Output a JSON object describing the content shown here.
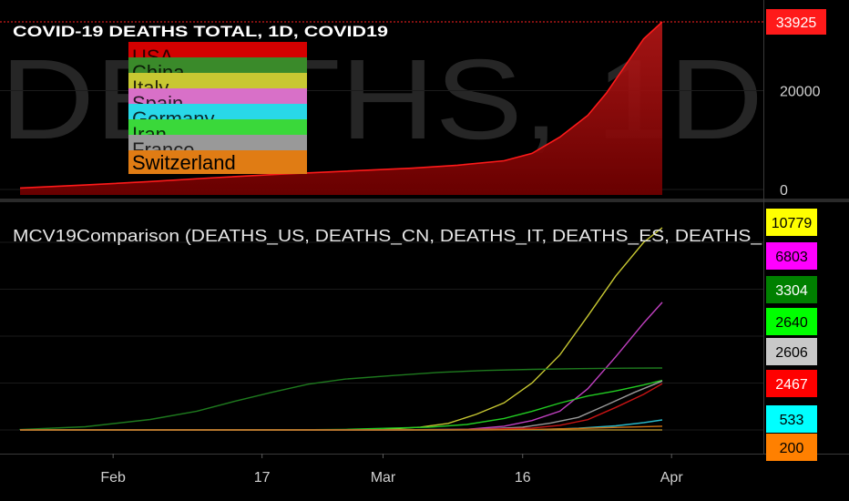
{
  "watermark": "DEATHS, 1D",
  "chart_data": [
    {
      "type": "area",
      "title": "COVID-19 DEATHS TOTAL, 1D, COVID19",
      "x_start": "2020-01-22",
      "x": [
        "2020-01-22",
        "2020-01-29",
        "2020-02-05",
        "2020-02-12",
        "2020-02-19",
        "2020-02-26",
        "2020-03-04",
        "2020-03-09",
        "2020-03-14",
        "2020-03-17",
        "2020-03-20",
        "2020-03-23",
        "2020-03-25",
        "2020-03-27",
        "2020-03-29",
        "2020-03-31"
      ],
      "values": [
        300,
        900,
        1600,
        2400,
        3100,
        3700,
        4300,
        4900,
        5800,
        7300,
        10600,
        15000,
        19500,
        25000,
        30500,
        33925
      ],
      "ylim": [
        -3000,
        35500
      ],
      "y_ticks": [
        0,
        20000
      ],
      "last_value_label": "33925",
      "color": "#ff1a1a",
      "legend": {
        "placement": "top-left",
        "entries": [
          {
            "name": "USA",
            "color": "#d40000"
          },
          {
            "name": "China",
            "color": "#3a8a2a"
          },
          {
            "name": "Italy",
            "color": "#c8c832"
          },
          {
            "name": "Spain",
            "color": "#d870c8"
          },
          {
            "name": "Germany",
            "color": "#29d8e8"
          },
          {
            "name": "Iran",
            "color": "#3ad83a"
          },
          {
            "name": "France",
            "color": "#999999"
          },
          {
            "name": "Switzerland",
            "color": "#e07c14"
          }
        ]
      }
    },
    {
      "type": "line",
      "title": "MCV19Comparison (DEATHS_US, DEATHS_CN, DEATHS_IT, DEATHS_ES, DEATHS_",
      "ylim": [
        -400,
        12000
      ],
      "series": [
        {
          "name": "Italy",
          "color": "#c8c832",
          "last_label": "10779",
          "label_bg": "#ffff00",
          "label_fg": "#000000",
          "points": [
            [
              "2020-02-21",
              0
            ],
            [
              "2020-03-01",
              30
            ],
            [
              "2020-03-05",
              150
            ],
            [
              "2020-03-08",
              350
            ],
            [
              "2020-03-11",
              830
            ],
            [
              "2020-03-14",
              1440
            ],
            [
              "2020-03-17",
              2500
            ],
            [
              "2020-03-20",
              4000
            ],
            [
              "2020-03-23",
              6080
            ],
            [
              "2020-03-26",
              8200
            ],
            [
              "2020-03-29",
              10000
            ],
            [
              "2020-03-31",
              10779
            ]
          ]
        },
        {
          "name": "Spain",
          "color": "#c040c0",
          "last_label": "6803",
          "label_bg": "#ff00ff",
          "label_fg": "#000000",
          "points": [
            [
              "2020-03-03",
              0
            ],
            [
              "2020-03-10",
              35
            ],
            [
              "2020-03-14",
              200
            ],
            [
              "2020-03-17",
              500
            ],
            [
              "2020-03-20",
              1000
            ],
            [
              "2020-03-23",
              2200
            ],
            [
              "2020-03-26",
              3900
            ],
            [
              "2020-03-29",
              5700
            ],
            [
              "2020-03-31",
              6803
            ]
          ]
        },
        {
          "name": "China",
          "color": "#1e7a1e",
          "last_label": "3304",
          "label_bg": "#008000",
          "label_fg": "#ffffff",
          "points": [
            [
              "2020-01-22",
              17
            ],
            [
              "2020-01-29",
              170
            ],
            [
              "2020-02-05",
              560
            ],
            [
              "2020-02-10",
              1000
            ],
            [
              "2020-02-14",
              1520
            ],
            [
              "2020-02-18",
              2000
            ],
            [
              "2020-02-22",
              2440
            ],
            [
              "2020-02-26",
              2715
            ],
            [
              "2020-03-02",
              2900
            ],
            [
              "2020-03-07",
              3070
            ],
            [
              "2020-03-12",
              3170
            ],
            [
              "2020-03-17",
              3230
            ],
            [
              "2020-03-22",
              3270
            ],
            [
              "2020-03-27",
              3290
            ],
            [
              "2020-03-31",
              3304
            ]
          ]
        },
        {
          "name": "Iran",
          "color": "#22cc22",
          "last_label": "2640",
          "label_bg": "#00ff00",
          "label_fg": "#000000",
          "points": [
            [
              "2020-02-19",
              0
            ],
            [
              "2020-02-26",
              30
            ],
            [
              "2020-03-02",
              100
            ],
            [
              "2020-03-06",
              150
            ],
            [
              "2020-03-10",
              290
            ],
            [
              "2020-03-14",
              610
            ],
            [
              "2020-03-17",
              990
            ],
            [
              "2020-03-20",
              1430
            ],
            [
              "2020-03-23",
              1810
            ],
            [
              "2020-03-26",
              2080
            ],
            [
              "2020-03-29",
              2400
            ],
            [
              "2020-03-31",
              2640
            ]
          ]
        },
        {
          "name": "France",
          "color": "#9a9a9a",
          "last_label": "2606",
          "label_bg": "#c8c8c8",
          "label_fg": "#000000",
          "points": [
            [
              "2020-02-29",
              0
            ],
            [
              "2020-03-09",
              25
            ],
            [
              "2020-03-13",
              80
            ],
            [
              "2020-03-16",
              150
            ],
            [
              "2020-03-19",
              370
            ],
            [
              "2020-03-22",
              670
            ],
            [
              "2020-03-25",
              1330
            ],
            [
              "2020-03-28",
              2000
            ],
            [
              "2020-03-31",
              2606
            ]
          ]
        },
        {
          "name": "USA",
          "color": "#c81414",
          "last_label": "2467",
          "label_bg": "#ff0000",
          "label_fg": "#ffffff",
          "points": [
            [
              "2020-02-29",
              0
            ],
            [
              "2020-03-08",
              20
            ],
            [
              "2020-03-13",
              50
            ],
            [
              "2020-03-17",
              100
            ],
            [
              "2020-03-20",
              250
            ],
            [
              "2020-03-23",
              550
            ],
            [
              "2020-03-26",
              1200
            ],
            [
              "2020-03-29",
              1900
            ],
            [
              "2020-03-31",
              2467
            ]
          ]
        },
        {
          "name": "Germany",
          "color": "#29b8c8",
          "last_label": "533",
          "label_bg": "#00ffff",
          "label_fg": "#000000",
          "points": [
            [
              "2020-03-08",
              0
            ],
            [
              "2020-03-14",
              9
            ],
            [
              "2020-03-18",
              20
            ],
            [
              "2020-03-22",
              90
            ],
            [
              "2020-03-26",
              220
            ],
            [
              "2020-03-29",
              390
            ],
            [
              "2020-03-31",
              533
            ]
          ]
        },
        {
          "name": "Switzerland",
          "color": "#d07010",
          "last_label": "200",
          "label_bg": "#ff8000",
          "label_fg": "#000000",
          "points": [
            [
              "2020-03-04",
              0
            ],
            [
              "2020-03-12",
              7
            ],
            [
              "2020-03-17",
              30
            ],
            [
              "2020-03-22",
              80
            ],
            [
              "2020-03-27",
              150
            ],
            [
              "2020-03-31",
              200
            ]
          ]
        }
      ]
    }
  ],
  "x_axis": {
    "ticks": [
      {
        "date": "2020-02-01",
        "label": "Feb"
      },
      {
        "date": "2020-02-17",
        "label": "17"
      },
      {
        "date": "2020-03-01",
        "label": "Mar"
      },
      {
        "date": "2020-03-16",
        "label": "16"
      },
      {
        "date": "2020-04-01",
        "label": "Apr"
      }
    ]
  }
}
